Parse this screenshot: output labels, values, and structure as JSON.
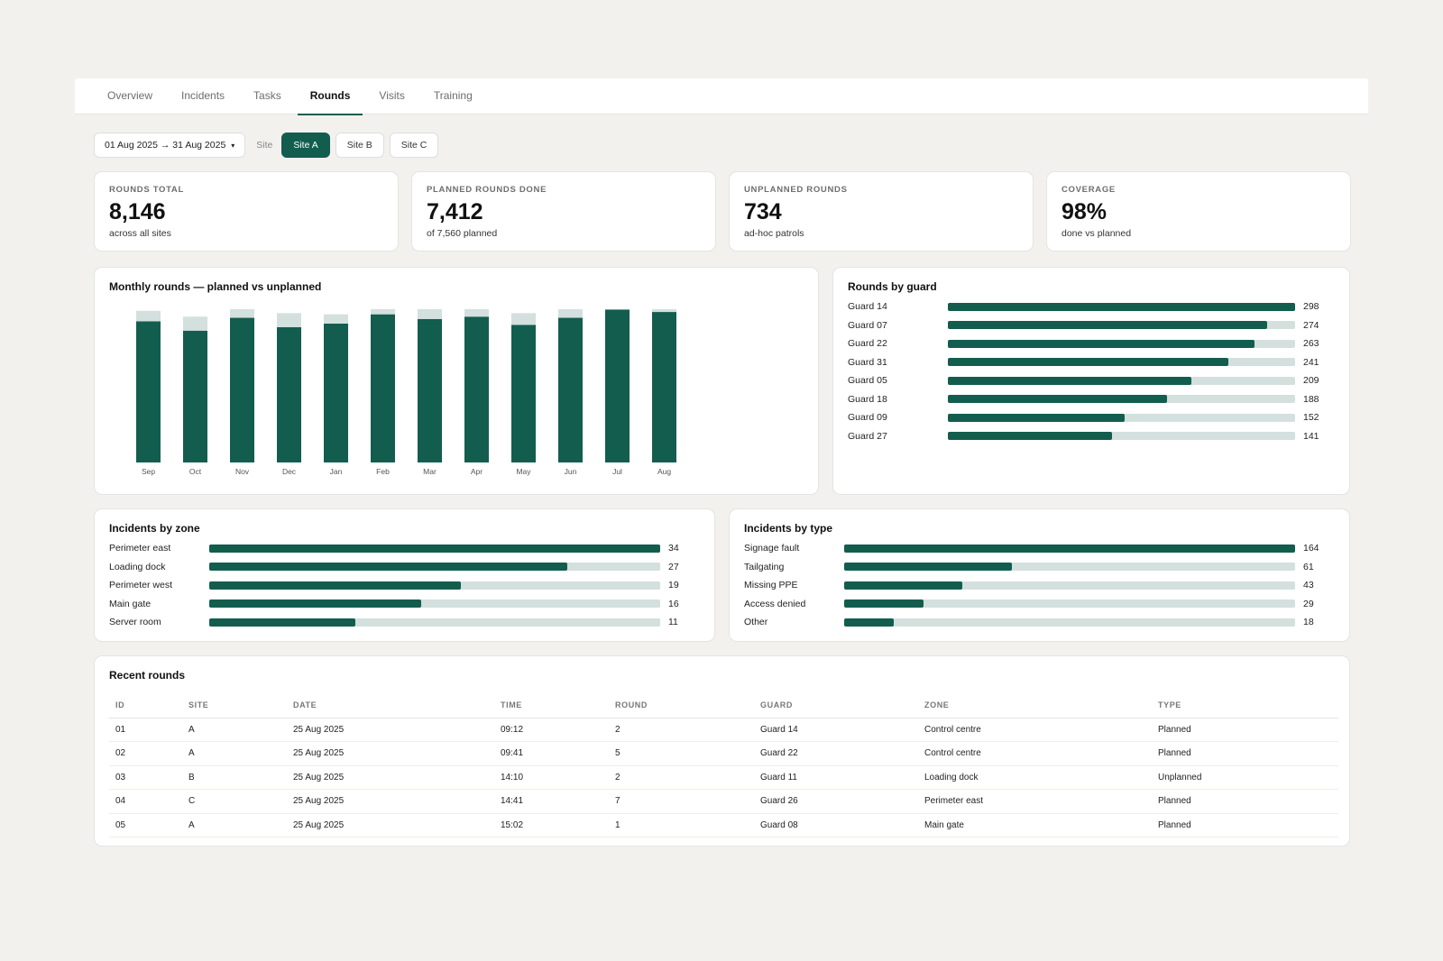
{
  "tabs": [
    "Overview",
    "Incidents",
    "Tasks",
    "Rounds",
    "Visits",
    "Training"
  ],
  "active_tab": "Rounds",
  "filters": {
    "date_range": "01 Aug 2025 → 31 Aug 2025",
    "site_label": "Site",
    "sites": [
      "Site A",
      "Site B",
      "Site C"
    ],
    "active_site": "Site A"
  },
  "kpis": [
    {
      "label": "ROUNDS TOTAL",
      "value": "8,146",
      "sub": "across all sites"
    },
    {
      "label": "PLANNED ROUNDS DONE",
      "value": "7,412",
      "sub": "of 7,560 planned"
    },
    {
      "label": "UNPLANNED ROUNDS",
      "value": "734",
      "sub": "ad-hoc patrols"
    },
    {
      "label": "COVERAGE",
      "value": "98%",
      "sub": "done vs planned"
    }
  ],
  "monthly": {
    "title": "Monthly rounds — planned vs unplanned"
  },
  "rounds_by_guard": {
    "title": "Rounds by guard"
  },
  "incidents_by_zone": {
    "title": "Incidents by zone"
  },
  "incidents_by_type": {
    "title": "Incidents by type"
  },
  "chart_data": [
    {
      "type": "bar",
      "stacked": true,
      "title": "Monthly rounds — planned vs unplanned",
      "categories": [
        "Sep",
        "Oct",
        "Nov",
        "Dec",
        "Jan",
        "Feb",
        "Mar",
        "Apr",
        "May",
        "Jun",
        "Jul",
        "Aug"
      ],
      "series": [
        {
          "values": [
            605,
            565,
            620,
            580,
            595,
            635,
            615,
            625,
            590,
            620,
            655,
            645
          ],
          "color": "#135d4f"
        },
        {
          "values": [
            45,
            60,
            50,
            60,
            40,
            55,
            60,
            50,
            50,
            65,
            60,
            50
          ],
          "color": "#d3e0dd"
        }
      ],
      "ylim": [
        0,
        850
      ],
      "grid": false
    },
    {
      "type": "bar",
      "orientation": "horizontal",
      "title": "Rounds by guard",
      "categories": [
        "Guard 14",
        "Guard 07",
        "Guard 22",
        "Guard 31",
        "Guard 05",
        "Guard 18",
        "Guard 09",
        "Guard 27"
      ],
      "values": [
        298,
        274,
        263,
        241,
        209,
        188,
        152,
        141
      ],
      "xlim": [
        0,
        298
      ]
    },
    {
      "type": "bar",
      "orientation": "horizontal",
      "title": "Incidents by zone",
      "categories": [
        "Perimeter east",
        "Loading dock",
        "Perimeter west",
        "Main gate",
        "Server room"
      ],
      "values": [
        34,
        27,
        19,
        16,
        11
      ],
      "xlim": [
        0,
        34
      ]
    },
    {
      "type": "bar",
      "orientation": "horizontal",
      "title": "Incidents by type",
      "categories": [
        "Signage fault",
        "Tailgating",
        "Missing PPE",
        "Access denied",
        "Other"
      ],
      "values": [
        164,
        61,
        43,
        29,
        18
      ],
      "xlim": [
        0,
        164
      ]
    }
  ],
  "recent_rounds": {
    "title": "Recent rounds",
    "columns": [
      "ID",
      "SITE",
      "DATE",
      "TIME",
      "ROUND",
      "GUARD",
      "ZONE",
      "TYPE"
    ],
    "rows": [
      [
        "01",
        "A",
        "25 Aug 2025",
        "09:12",
        "2",
        "Guard 14",
        "Control centre",
        "Planned"
      ],
      [
        "02",
        "A",
        "25 Aug 2025",
        "09:41",
        "5",
        "Guard 22",
        "Control centre",
        "Planned"
      ],
      [
        "03",
        "B",
        "25 Aug 2025",
        "14:10",
        "2",
        "Guard 11",
        "Loading dock",
        "Unplanned"
      ],
      [
        "04",
        "C",
        "25 Aug 2025",
        "14:41",
        "7",
        "Guard 26",
        "Perimeter east",
        "Planned"
      ],
      [
        "05",
        "A",
        "25 Aug 2025",
        "15:02",
        "1",
        "Guard 08",
        "Main gate",
        "Planned"
      ]
    ]
  }
}
